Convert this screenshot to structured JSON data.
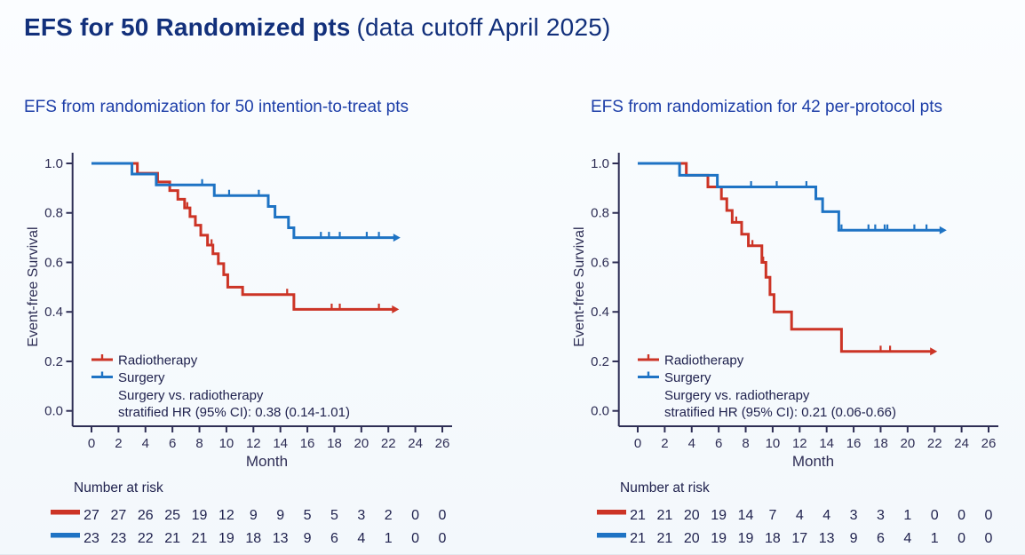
{
  "title": {
    "main": "EFS for 50 Randomized pts",
    "suffix": "(data cutoff April 2025)"
  },
  "colors": {
    "title_navy": "#12307b",
    "subtitle_blue": "#1d3ea8",
    "axis_text": "#2e2e55",
    "risk_text": "#20224e",
    "radiotherapy_red": "#cc3426",
    "surgery_blue": "#1e73c4"
  },
  "chart_data": [
    {
      "type": "line",
      "subtype": "kaplan-meier",
      "subtitle": "EFS from randomization for 50 intention-to-treat pts",
      "xlabel": "Month",
      "ylabel": "Event-free Survival",
      "xticks": [
        0,
        2,
        4,
        6,
        8,
        10,
        12,
        14,
        16,
        18,
        20,
        22,
        24,
        26
      ],
      "yticks": [
        "1.0",
        "0.8",
        "0.6",
        "0.4",
        "0.2",
        "0.0"
      ],
      "xlim": [
        0,
        26
      ],
      "ylim": [
        0.0,
        1.0
      ],
      "legend_position": "lower-left-inside",
      "hr_lines": [
        "Surgery vs. radiotherapy",
        "stratified HR (95% CI): 0.38 (0.14-1.01)"
      ],
      "series": [
        {
          "name": "Radiotherapy",
          "color": "#cc3426",
          "start": [
            0,
            1.0
          ],
          "drops": [
            [
              3.4,
              0.96
            ],
            [
              4.9,
              0.925
            ],
            [
              5.8,
              0.89
            ],
            [
              6.4,
              0.855
            ],
            [
              6.9,
              0.82
            ],
            [
              7.3,
              0.785
            ],
            [
              7.7,
              0.75
            ],
            [
              8.1,
              0.71
            ],
            [
              8.6,
              0.67
            ],
            [
              9.0,
              0.635
            ],
            [
              9.4,
              0.595
            ],
            [
              9.8,
              0.55
            ],
            [
              10.1,
              0.5
            ],
            [
              11.2,
              0.47
            ],
            [
              15.0,
              0.41
            ]
          ],
          "end_month": 22.4,
          "censors": [
            [
              7.1,
              0.82
            ],
            [
              8.9,
              0.67
            ],
            [
              14.5,
              0.47
            ],
            [
              17.8,
              0.41
            ],
            [
              18.4,
              0.41
            ],
            [
              21.3,
              0.41
            ]
          ]
        },
        {
          "name": "Surgery",
          "color": "#1e73c4",
          "start": [
            0,
            1.0
          ],
          "drops": [
            [
              3.0,
              0.957
            ],
            [
              4.8,
              0.913
            ],
            [
              9.1,
              0.87
            ],
            [
              13.1,
              0.826
            ],
            [
              13.6,
              0.783
            ],
            [
              14.6,
              0.74
            ],
            [
              15.0,
              0.7
            ]
          ],
          "end_month": 22.5,
          "censors": [
            [
              8.2,
              0.913
            ],
            [
              10.2,
              0.87
            ],
            [
              12.4,
              0.87
            ],
            [
              17.0,
              0.7
            ],
            [
              17.6,
              0.7
            ],
            [
              18.4,
              0.7
            ],
            [
              20.4,
              0.7
            ],
            [
              21.3,
              0.7
            ]
          ]
        }
      ],
      "risk_table": {
        "label": "Number at risk",
        "months": [
          0,
          2,
          4,
          6,
          8,
          10,
          12,
          14,
          16,
          18,
          20,
          22,
          24,
          26
        ],
        "rows": [
          {
            "name": "Radiotherapy",
            "color": "#cc3426",
            "counts": [
              27,
              27,
              26,
              25,
              19,
              12,
              9,
              9,
              5,
              5,
              3,
              2,
              0,
              0
            ]
          },
          {
            "name": "Surgery",
            "color": "#1e73c4",
            "counts": [
              23,
              23,
              22,
              21,
              21,
              19,
              18,
              13,
              9,
              6,
              4,
              1,
              0,
              0
            ]
          }
        ]
      }
    },
    {
      "type": "line",
      "subtype": "kaplan-meier",
      "subtitle": "EFS from randomization for 42 per-protocol pts",
      "xlabel": "Month",
      "ylabel": "Event-free Survival",
      "xticks": [
        0,
        2,
        4,
        6,
        8,
        10,
        12,
        14,
        16,
        18,
        20,
        22,
        24,
        26
      ],
      "yticks": [
        "1.0",
        "0.8",
        "0.6",
        "0.4",
        "0.2",
        "0.0"
      ],
      "xlim": [
        0,
        26
      ],
      "ylim": [
        0.0,
        1.0
      ],
      "legend_position": "lower-left-inside",
      "hr_lines": [
        "Surgery vs. radiotherapy",
        "stratified HR (95% CI): 0.21 (0.06-0.66)"
      ],
      "series": [
        {
          "name": "Radiotherapy",
          "color": "#cc3426",
          "start": [
            0,
            1.0
          ],
          "drops": [
            [
              3.6,
              0.952
            ],
            [
              5.2,
              0.905
            ],
            [
              6.2,
              0.857
            ],
            [
              6.6,
              0.81
            ],
            [
              7.0,
              0.762
            ],
            [
              7.7,
              0.714
            ],
            [
              8.2,
              0.667
            ],
            [
              9.2,
              0.6
            ],
            [
              9.5,
              0.54
            ],
            [
              9.8,
              0.47
            ],
            [
              10.1,
              0.4
            ],
            [
              11.4,
              0.33
            ],
            [
              15.1,
              0.24
            ]
          ],
          "end_month": 21.8,
          "censors": [
            [
              7.3,
              0.762
            ],
            [
              8.5,
              0.667
            ],
            [
              9.3,
              0.6
            ],
            [
              18.0,
              0.24
            ],
            [
              18.7,
              0.24
            ]
          ]
        },
        {
          "name": "Surgery",
          "color": "#1e73c4",
          "start": [
            0,
            1.0
          ],
          "drops": [
            [
              3.1,
              0.952
            ],
            [
              5.9,
              0.905
            ],
            [
              13.2,
              0.857
            ],
            [
              13.7,
              0.805
            ],
            [
              14.9,
              0.73
            ]
          ],
          "end_month": 22.5,
          "censors": [
            [
              8.4,
              0.905
            ],
            [
              10.3,
              0.905
            ],
            [
              12.5,
              0.905
            ],
            [
              15.1,
              0.73
            ],
            [
              17.1,
              0.73
            ],
            [
              17.6,
              0.73
            ],
            [
              18.3,
              0.73
            ],
            [
              18.5,
              0.73
            ],
            [
              20.5,
              0.73
            ],
            [
              21.4,
              0.73
            ]
          ]
        }
      ],
      "risk_table": {
        "label": "Number at risk",
        "months": [
          0,
          2,
          4,
          6,
          8,
          10,
          12,
          14,
          16,
          18,
          20,
          22,
          24,
          26
        ],
        "rows": [
          {
            "name": "Radiotherapy",
            "color": "#cc3426",
            "counts": [
              21,
              21,
              20,
              19,
              14,
              7,
              4,
              4,
              3,
              3,
              1,
              0,
              0,
              0
            ]
          },
          {
            "name": "Surgery",
            "color": "#1e73c4",
            "counts": [
              21,
              21,
              20,
              19,
              19,
              18,
              17,
              13,
              9,
              6,
              4,
              1,
              0,
              0
            ]
          }
        ]
      }
    }
  ]
}
